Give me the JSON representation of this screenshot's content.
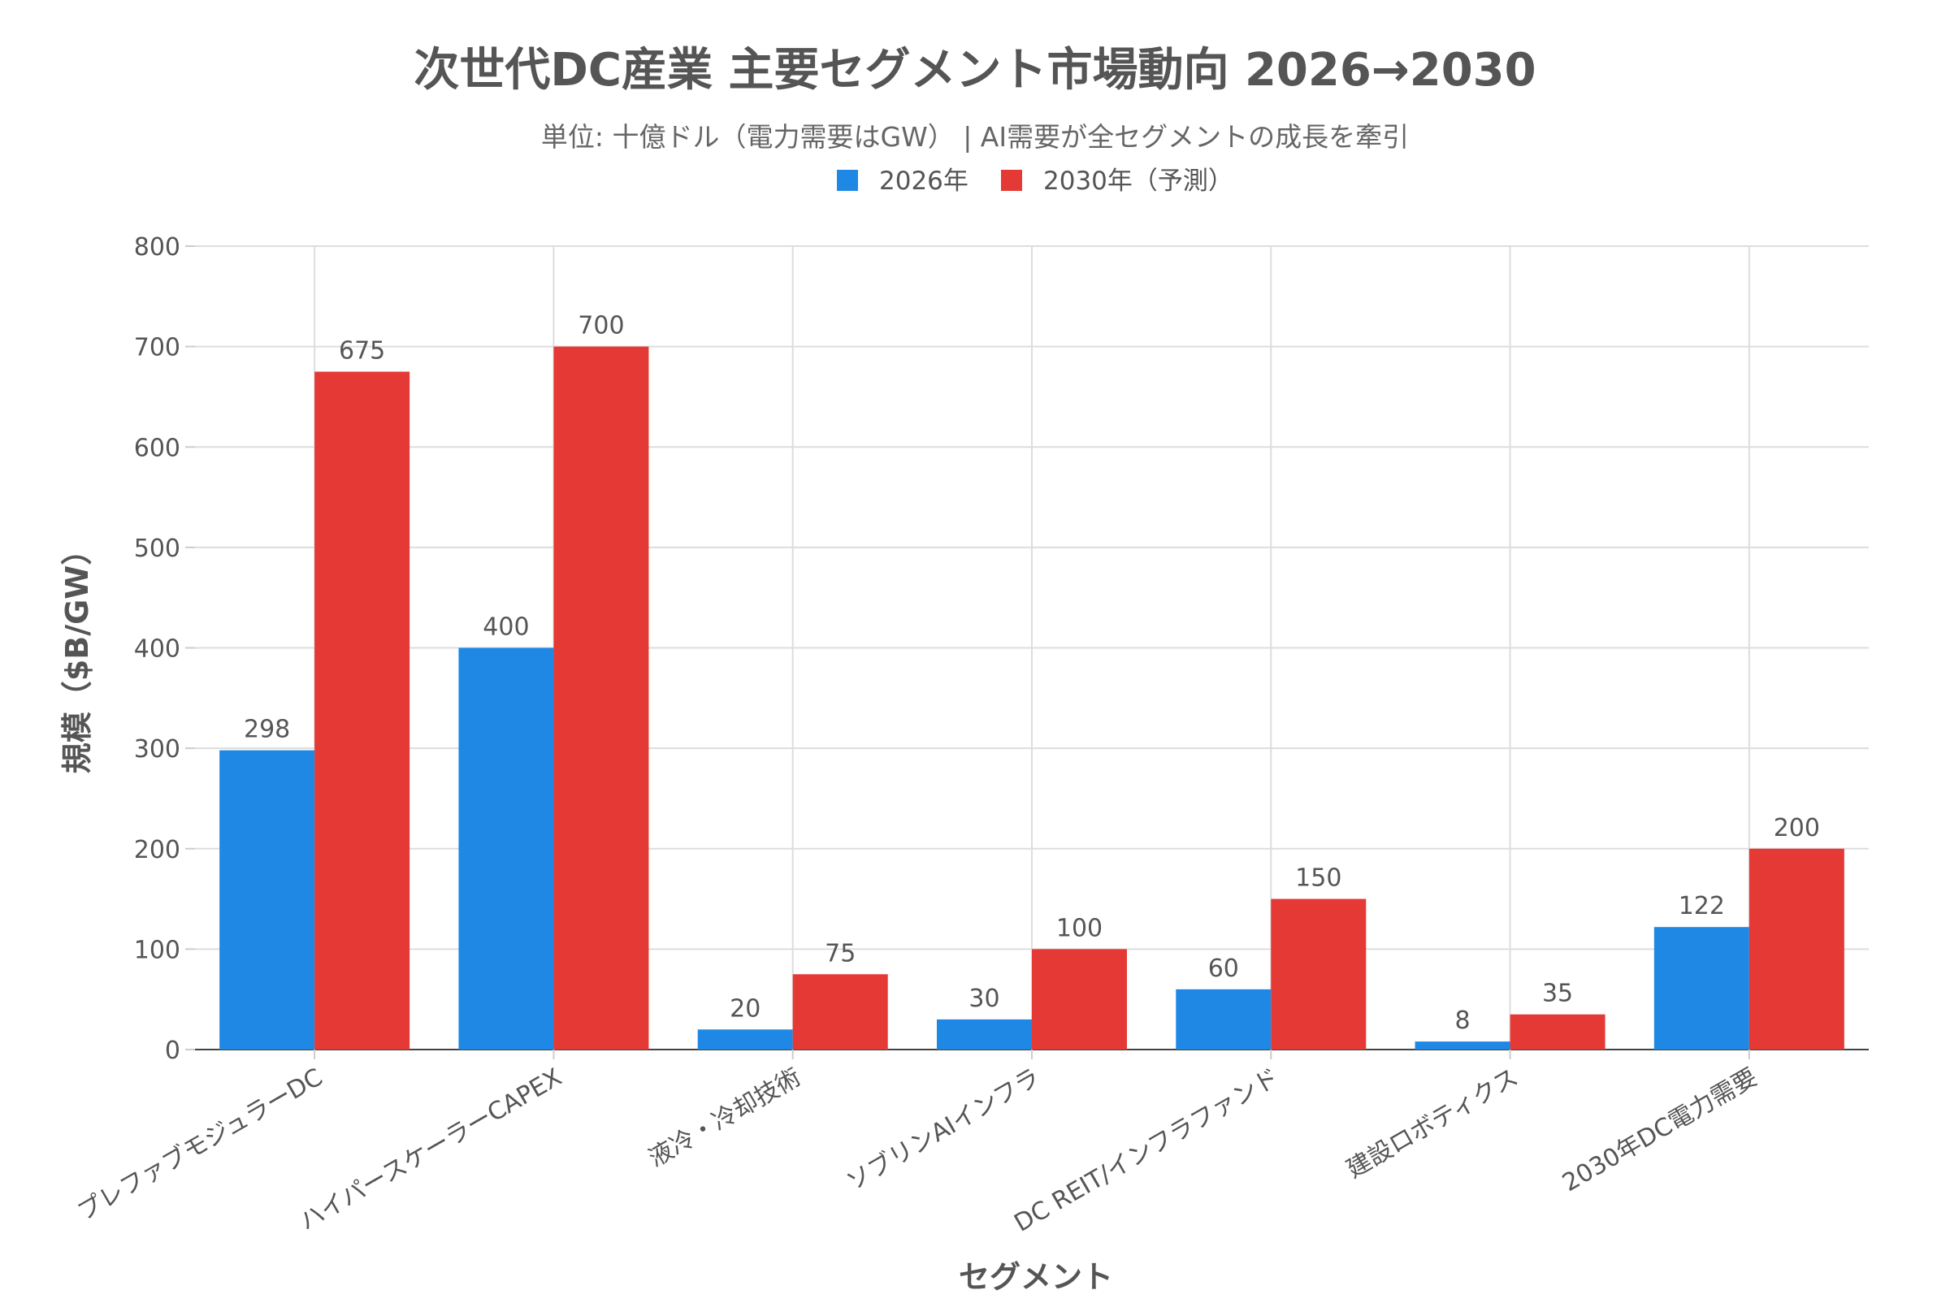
{
  "chart_data": {
    "type": "bar",
    "title": "次世代DC産業 主要セグメント市場動向 2026→2030",
    "subtitle": "単位: 十億ドル（電力需要はGW） | AI需要が全セグメントの成長を牽引",
    "xlabel": "セグメント",
    "ylabel": "規模（$B/GW）",
    "ylim": [
      0,
      800
    ],
    "yticks": [
      0,
      100,
      200,
      300,
      400,
      500,
      600,
      700,
      800
    ],
    "grid": true,
    "legend_position": "top-center",
    "categories": [
      "プレファブモジュラーDC",
      "ハイパースケーラーCAPEX",
      "液冷・冷却技術",
      "ソブリンAIインフラ",
      "DC REIT/インフラファンド",
      "建設ロボティクス",
      "2030年DC電力需要"
    ],
    "series": [
      {
        "name": "2026年",
        "color": "#1f88e5",
        "values": [
          298,
          400,
          20,
          30,
          60,
          8,
          122
        ]
      },
      {
        "name": "2030年（予測）",
        "color": "#e53935",
        "values": [
          675,
          700,
          75,
          100,
          150,
          35,
          200
        ]
      }
    ]
  }
}
